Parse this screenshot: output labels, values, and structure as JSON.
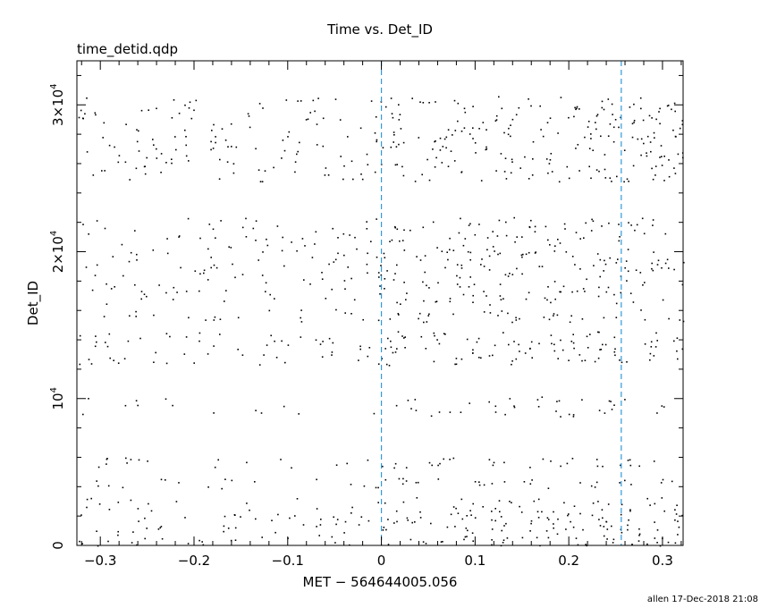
{
  "chart_data": {
    "type": "scatter",
    "title": "Time vs. Det_ID",
    "subtitle": "time_detid.qdp",
    "xlabel": "MET − 564644005.056",
    "ylabel": "Det_ID",
    "xlim": [
      -0.325,
      0.322
    ],
    "ylim": [
      0,
      33000
    ],
    "x_ticks": [
      {
        "value": -0.3,
        "label": "−0.3"
      },
      {
        "value": -0.2,
        "label": "−0.2"
      },
      {
        "value": -0.1,
        "label": "−0.1"
      },
      {
        "value": 0,
        "label": "0"
      },
      {
        "value": 0.1,
        "label": "0.1"
      },
      {
        "value": 0.2,
        "label": "0.2"
      },
      {
        "value": 0.3,
        "label": "0.3"
      }
    ],
    "y_ticks": [
      {
        "value": 0,
        "mantissa": "",
        "base": "",
        "exp": "",
        "plain": "0"
      },
      {
        "value": 10000,
        "mantissa": "",
        "base": "10",
        "exp": "4",
        "plain": ""
      },
      {
        "value": 20000,
        "mantissa": "2×",
        "base": "10",
        "exp": "4",
        "plain": ""
      },
      {
        "value": 30000,
        "mantissa": "3×",
        "base": "10",
        "exp": "4",
        "plain": ""
      }
    ],
    "vertical_lines": [
      {
        "x": 0,
        "color": "#3399dd",
        "style": "dashed"
      },
      {
        "x": 0.256,
        "color": "#3399dd",
        "style": "dashed"
      }
    ],
    "bands": [
      {
        "y_min": 0,
        "y_max": 3300,
        "density_before_0": 0.85,
        "density_after_0": 1.7
      },
      {
        "y_min": 3900,
        "y_max": 4600,
        "density_before_0": 0.9,
        "density_after_0": 1.5
      },
      {
        "y_min": 5300,
        "y_max": 6000,
        "density_before_0": 0.9,
        "density_after_0": 1.6
      },
      {
        "y_min": 8800,
        "y_max": 10200,
        "density_before_0": 0.35,
        "density_after_0": 1.0
      },
      {
        "y_min": 12300,
        "y_max": 14600,
        "density_before_0": 0.9,
        "density_after_0": 1.6
      },
      {
        "y_min": 15200,
        "y_max": 16100,
        "density_before_0": 0.8,
        "density_after_0": 1.4
      },
      {
        "y_min": 16400,
        "y_max": 22400,
        "density_before_0": 0.75,
        "density_after_0": 1.3
      },
      {
        "y_min": 24800,
        "y_max": 30600,
        "density_before_0": 0.85,
        "density_after_0": 1.4
      }
    ],
    "marker_color": "#000000",
    "grid": false,
    "legend": "none"
  },
  "footer": {
    "text": "allen 17-Dec-2018 21:08"
  }
}
